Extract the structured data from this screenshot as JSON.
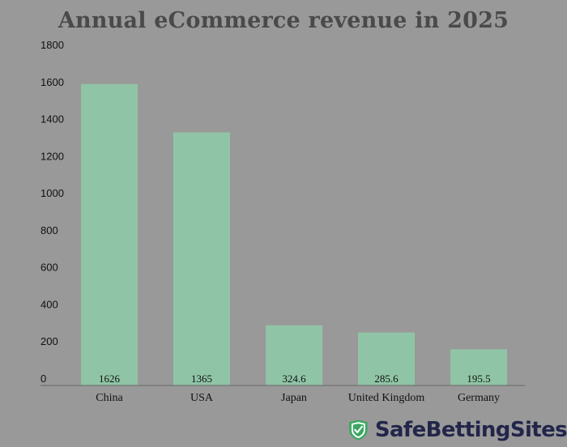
{
  "chart_data": {
    "type": "bar",
    "title": "Annual eCommerce revenue in 2025",
    "categories": [
      "China",
      "USA",
      "Japan",
      "United Kingdom",
      "Germany"
    ],
    "values": [
      1626,
      1365,
      324.6,
      285.6,
      195.5
    ],
    "value_labels": [
      "1626",
      "1365",
      "324.6",
      "285.6",
      "195.5"
    ],
    "yticks": [
      0,
      200,
      400,
      600,
      800,
      1000,
      1200,
      1400,
      1600,
      1800
    ],
    "ylim": [
      0,
      1800
    ],
    "xlabel": "",
    "ylabel": "",
    "grid": false,
    "bar_color": "#90c4a6"
  },
  "brand": {
    "name": "SafeBettingSites",
    "shield_color": "#3aa862",
    "text_color": "#22264a"
  }
}
